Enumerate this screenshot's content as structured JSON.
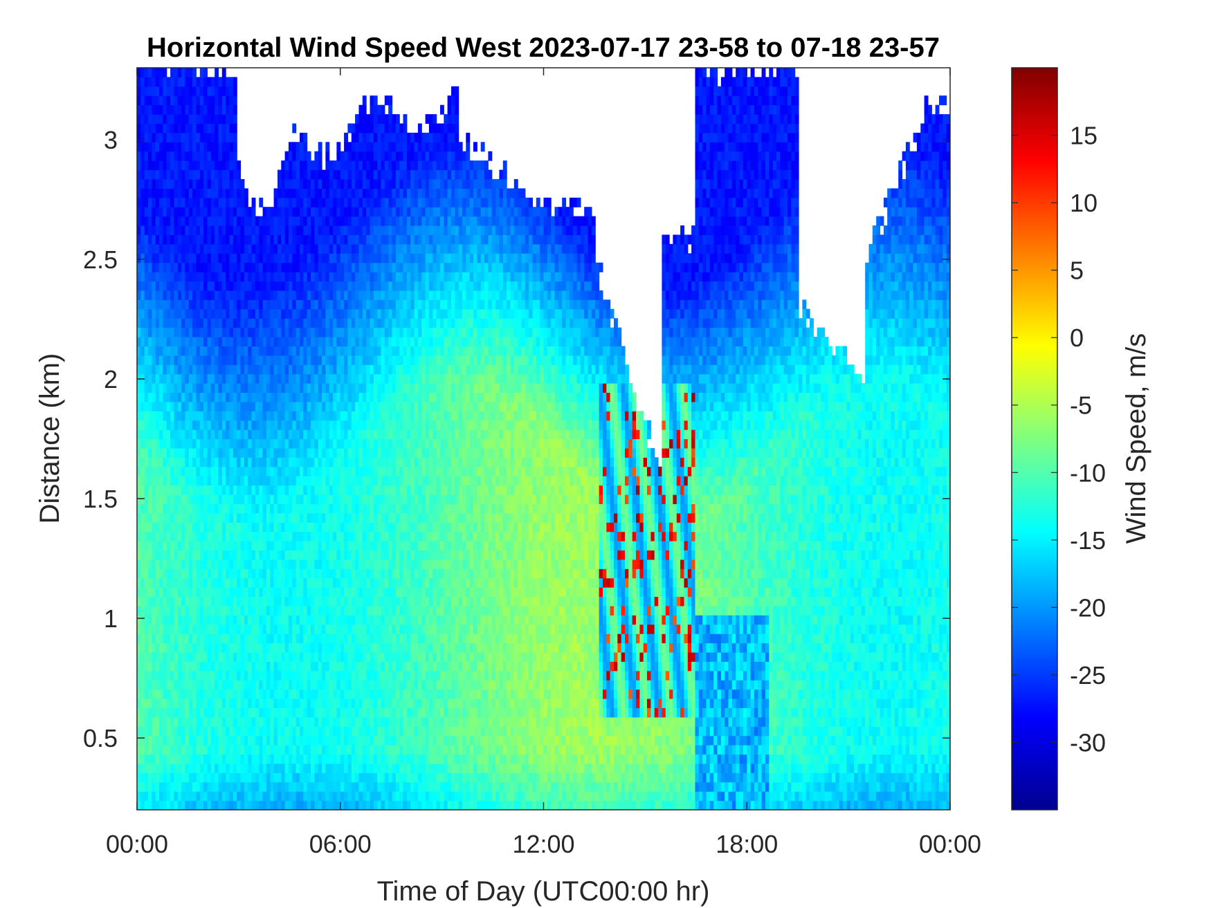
{
  "chart_data": {
    "type": "heatmap",
    "title": "Horizontal Wind Speed West 2023-07-17 23-58 to 07-18 23-57",
    "xlabel": "Time of Day (UTC00:00 hr)",
    "ylabel": "Distance (km)",
    "x_ticks": [
      "00:00",
      "06:00",
      "12:00",
      "18:00",
      "00:00"
    ],
    "x_range_hours": [
      0,
      24
    ],
    "y_ticks": [
      0.5,
      1,
      1.5,
      2,
      2.5,
      3
    ],
    "y_range_km": [
      0.2,
      3.3
    ],
    "colorbar": {
      "label": "Wind Speed, m/s",
      "colormap": "jet",
      "range": [
        -35,
        20
      ],
      "ticks": [
        15,
        10,
        5,
        0,
        -5,
        -10,
        -15,
        -20,
        -25,
        -30
      ]
    },
    "regions": [
      {
        "time_hours": [
          0,
          10
        ],
        "distance_km": [
          0.2,
          1.8
        ],
        "wind_speed_ms": [
          -15,
          -7
        ]
      },
      {
        "time_hours": [
          0,
          16.5
        ],
        "distance_km": [
          2.2,
          3.3
        ],
        "wind_speed_ms": [
          -30,
          -20
        ]
      },
      {
        "time_hours": [
          13.5,
          16.5
        ],
        "distance_km": [
          0.6,
          2.0
        ],
        "wind_speed_ms": [
          -5,
          15
        ]
      },
      {
        "time_hours": [
          16.5,
          24
        ],
        "distance_km": [
          0.2,
          3.3
        ],
        "wind_speed_ms": [
          -28,
          -8
        ]
      }
    ]
  }
}
